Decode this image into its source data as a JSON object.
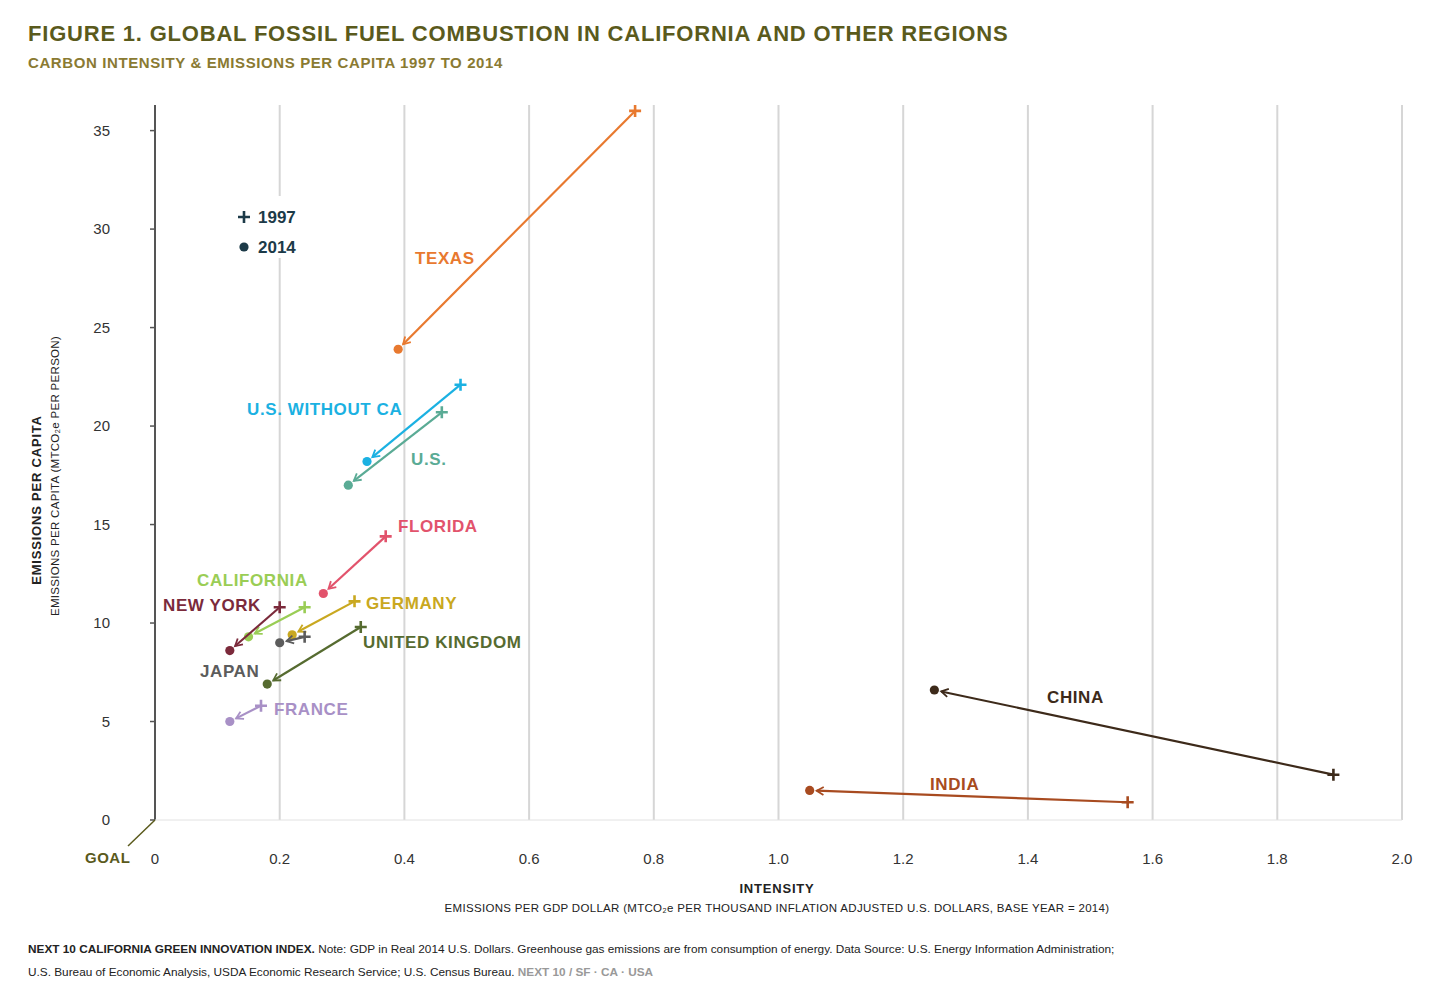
{
  "chart_data": {
    "type": "scatter",
    "title": "FIGURE 1. GLOBAL FOSSIL FUEL COMBUSTION IN CALIFORNIA AND OTHER REGIONS",
    "subtitle": "CARBON INTENSITY & EMISSIONS PER CAPITA 1997 TO 2014",
    "x_label": "INTENSITY",
    "x_sublabel": "EMISSIONS PER GDP DOLLAR (MTCO₂e PER THOUSAND INFLATION ADJUSTED U.S. DOLLARS, BASE YEAR = 2014)",
    "y_label": "EMISSIONS PER CAPITA",
    "y_sublabel": "EMISSIONS PER CAPITA (MTCO₂e PER PERSON)",
    "annotations": [
      {
        "text": "GOAL"
      }
    ],
    "legend": "upper left",
    "legend_entries": [
      {
        "label": "1997",
        "marker": "plus"
      },
      {
        "label": "2014",
        "marker": "circle"
      }
    ],
    "grid": "x",
    "xlim": [
      0,
      2.0
    ],
    "ylim": [
      0,
      36.3
    ],
    "xticks": [
      0,
      0.2,
      0.4,
      0.6,
      0.8,
      {
        "value": 1.0,
        "label": "1.0"
      },
      1.2,
      1.4,
      1.6,
      1.8,
      {
        "value": 2.0,
        "label": "2.0"
      }
    ],
    "yticks": [
      0,
      5,
      10,
      15,
      20,
      25,
      30,
      35
    ],
    "series": [
      {
        "name": "TEXAS",
        "color": "#e8792f",
        "x": [
          0.77,
          0.39
        ],
        "values": [
          36.0,
          23.9
        ]
      },
      {
        "name": "U.S. WITHOUT CA",
        "color": "#1bb1e2",
        "x": [
          0.49,
          0.34
        ],
        "values": [
          22.1,
          18.2
        ]
      },
      {
        "name": "U.S.",
        "color": "#5aab95",
        "x": [
          0.46,
          0.31
        ],
        "values": [
          20.7,
          17.0
        ]
      },
      {
        "name": "FLORIDA",
        "color": "#e2536c",
        "x": [
          0.37,
          0.27
        ],
        "values": [
          14.4,
          11.5
        ]
      },
      {
        "name": "CALIFORNIA",
        "color": "#9acd55",
        "x": [
          0.24,
          0.15
        ],
        "values": [
          10.8,
          9.3
        ]
      },
      {
        "name": "NEW YORK",
        "color": "#7b2a3b",
        "x": [
          0.2,
          0.12
        ],
        "values": [
          10.8,
          8.6
        ]
      },
      {
        "name": "GERMANY",
        "color": "#c9a820",
        "x": [
          0.32,
          0.22
        ],
        "values": [
          11.1,
          9.4
        ]
      },
      {
        "name": "JAPAN",
        "color": "#5c5c5c",
        "x": [
          0.24,
          0.2
        ],
        "values": [
          9.3,
          9.0
        ]
      },
      {
        "name": "UNITED KINGDOM",
        "color": "#566b30",
        "x": [
          0.33,
          0.18
        ],
        "values": [
          9.8,
          6.9
        ]
      },
      {
        "name": "FRANCE",
        "color": "#a890c6",
        "x": [
          0.17,
          0.12
        ],
        "values": [
          5.8,
          5.0
        ]
      },
      {
        "name": "CHINA",
        "color": "#3d2a1a",
        "x": [
          1.89,
          1.25
        ],
        "values": [
          2.3,
          6.6
        ]
      },
      {
        "name": "INDIA",
        "color": "#a84b20",
        "x": [
          1.56,
          1.05
        ],
        "values": [
          0.9,
          1.5
        ]
      }
    ],
    "footer": {
      "title": "NEXT 10 CALIFORNIA GREEN INNOVATION INDEX.",
      "note": [
        "Note: GDP in Real 2014 U.S. Dollars. Greenhouse gas emissions are from consumption of energy. Data Source: U.S. Energy Information Administration;",
        "U.S. Bureau of Economic Analysis, USDA Economic Research Service; U.S. Census Bureau."
      ],
      "credit": "NEXT 10  /  SF · CA · USA"
    }
  }
}
